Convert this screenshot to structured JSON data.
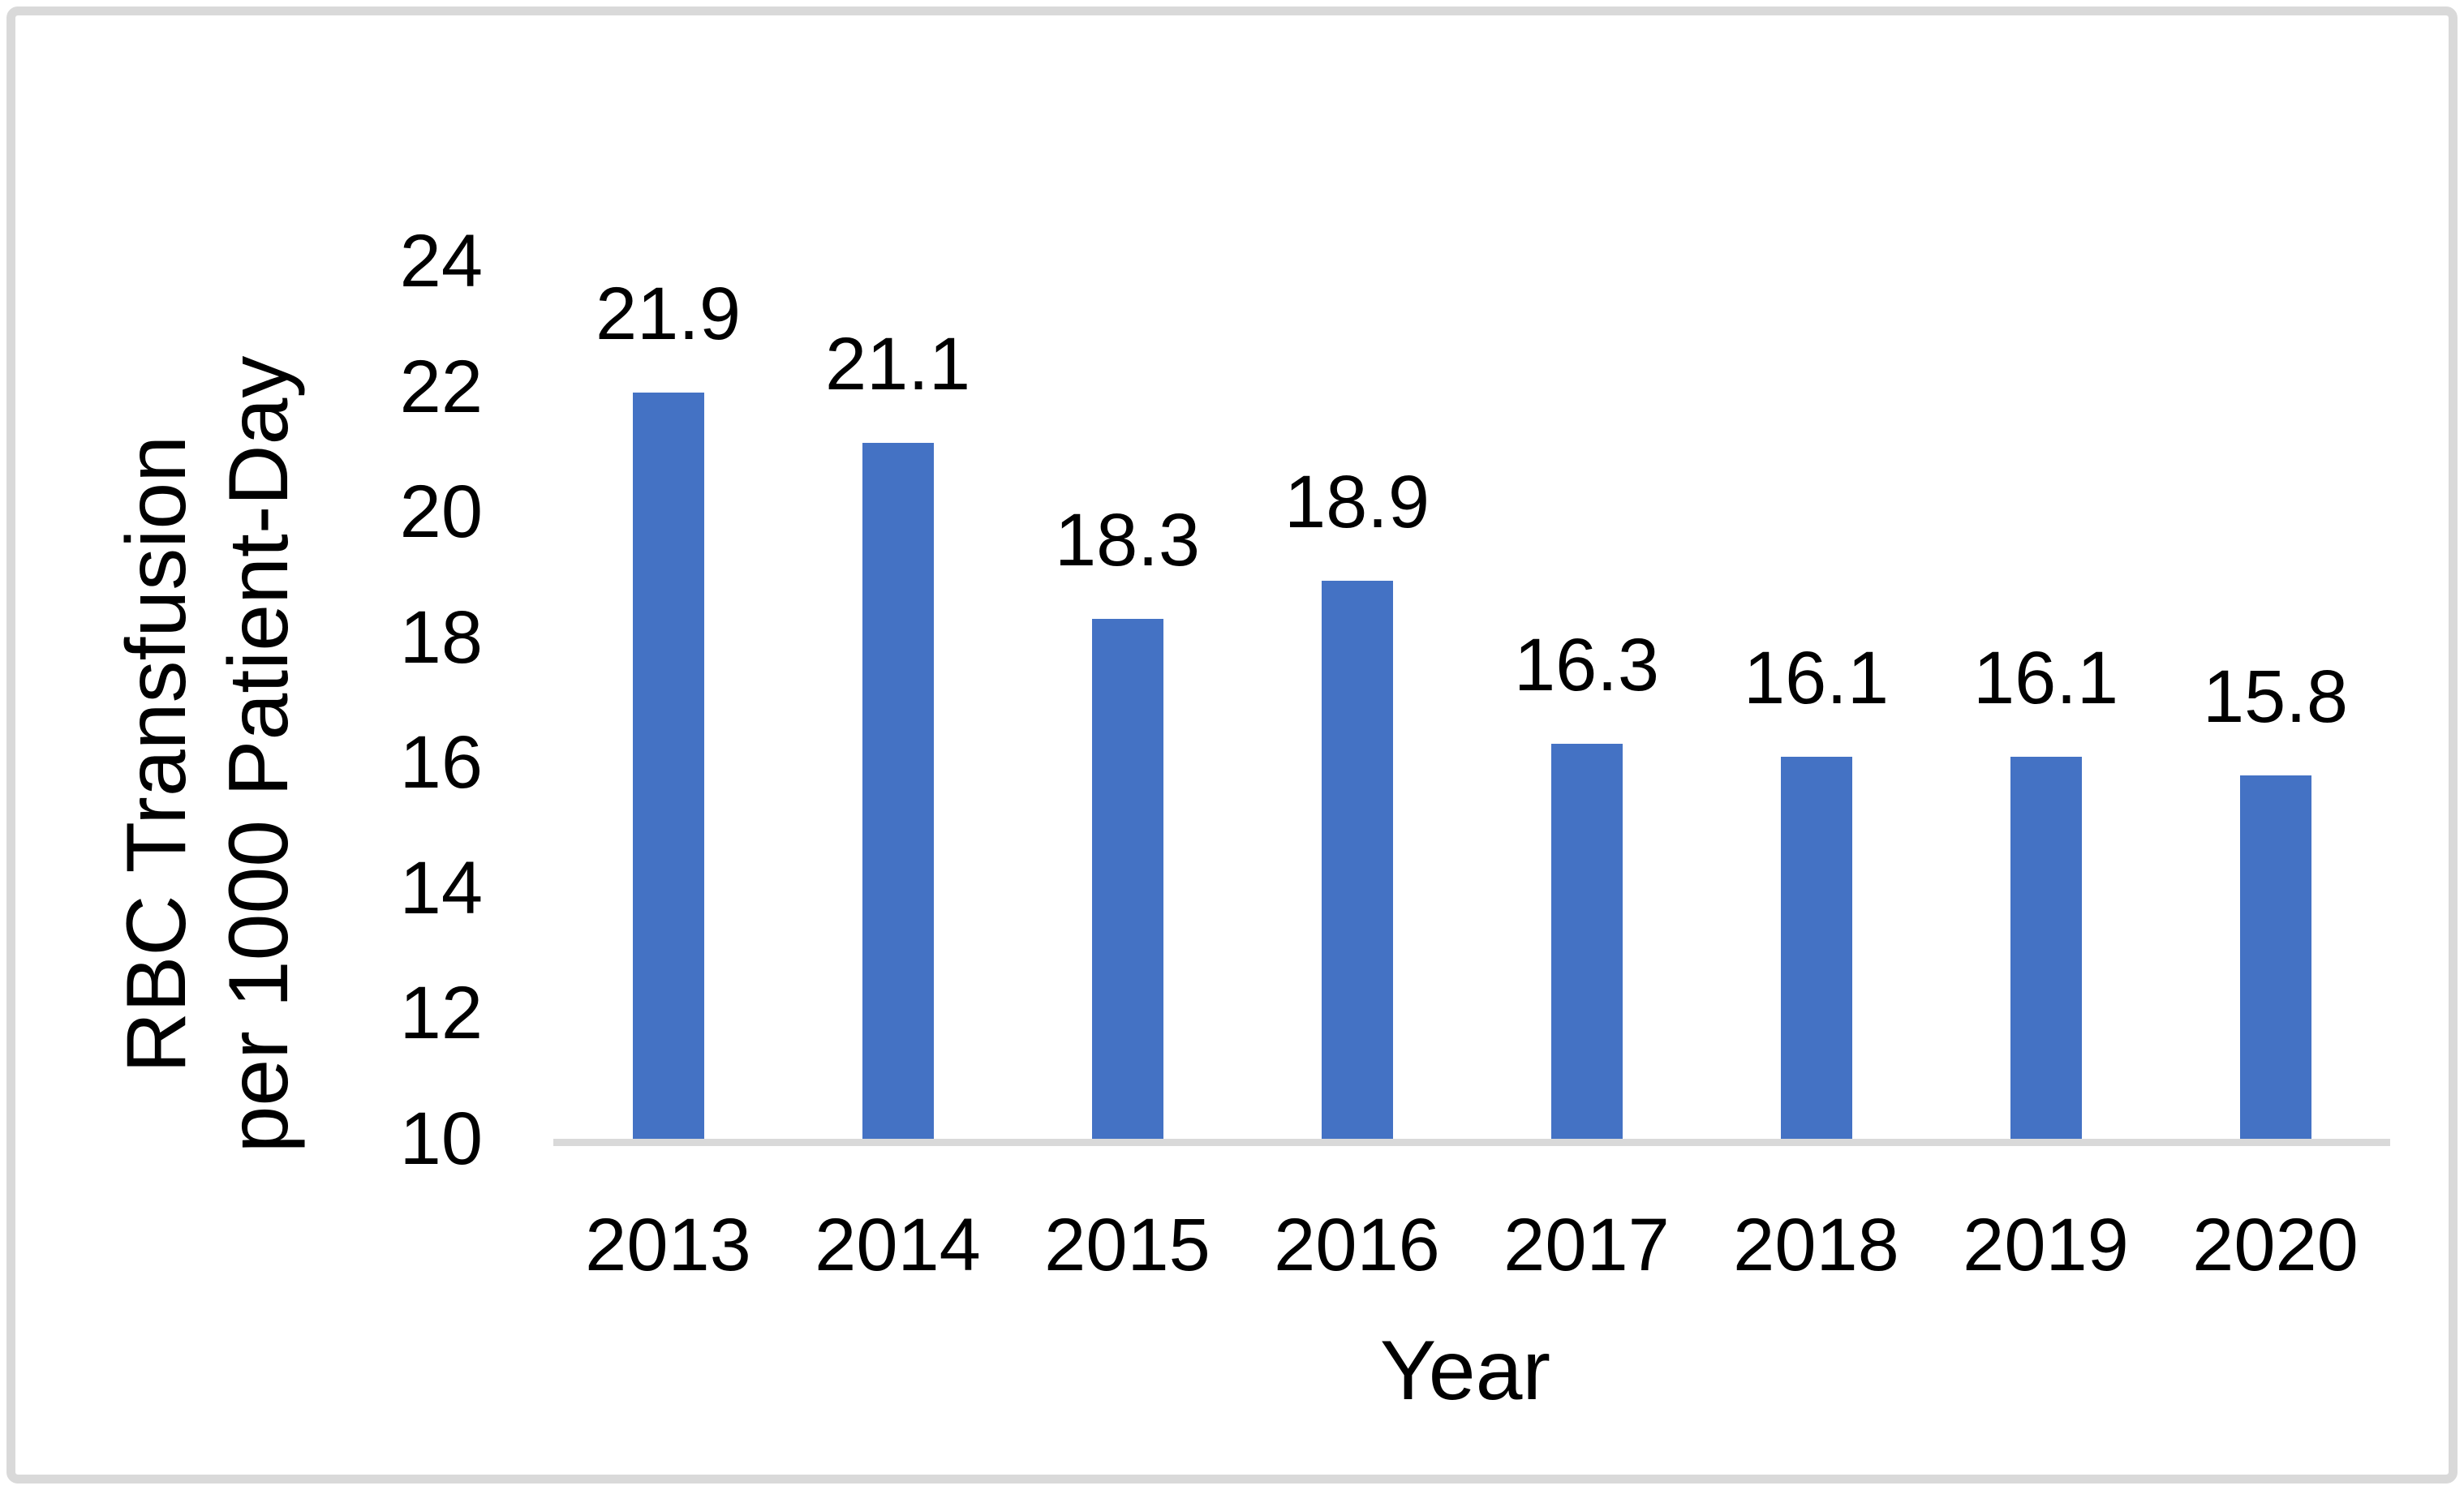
{
  "figure": {
    "background_color": "#FFFFFF",
    "border_color": "#D9D9D9",
    "text_color": "#000000"
  },
  "chart_data": {
    "type": "bar",
    "title": "",
    "categories": [
      "2013",
      "2014",
      "2015",
      "2016",
      "2017",
      "2018",
      "2019",
      "2020"
    ],
    "values": [
      21.9,
      21.1,
      18.3,
      18.9,
      16.3,
      16.1,
      16.1,
      15.8
    ],
    "data_labels": [
      "21.9",
      "21.1",
      "18.3",
      "18.9",
      "16.3",
      "16.1",
      "16.1",
      "15.8"
    ],
    "xlabel": "Year",
    "ylabel_line1": "RBC Transfusion",
    "ylabel_line2": "per 1000 Patient-Day",
    "ylim": [
      10,
      24
    ],
    "ytick_step": 2,
    "ytick_labels": [
      "10",
      "12",
      "14",
      "16",
      "18",
      "20",
      "22",
      "24"
    ],
    "bar_color": "#4472C4",
    "axis_line_color": "#D9D9D9",
    "grid": false,
    "legend": false,
    "data_labels_shown": true
  }
}
